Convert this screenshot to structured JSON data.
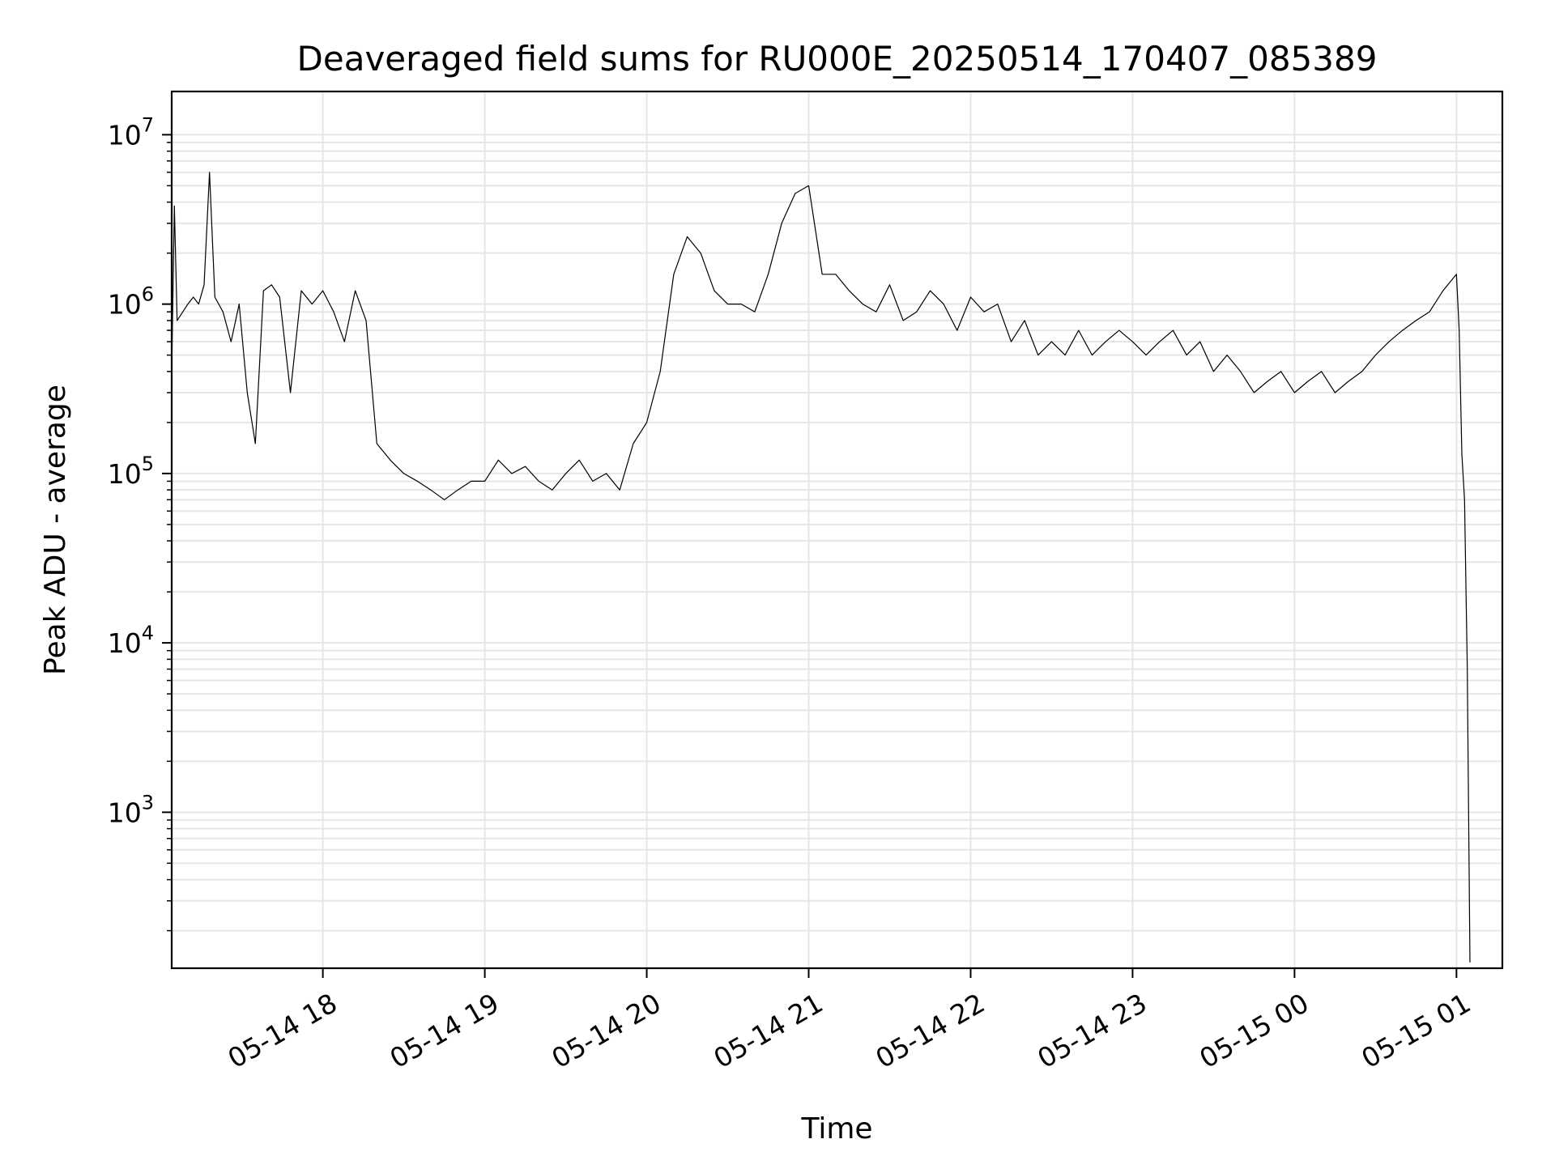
{
  "chart_data": {
    "type": "line",
    "title": "Deaveraged field sums for RU000E_20250514_170407_085389",
    "xlabel": "Time",
    "ylabel": "Peak ADU - average",
    "yscale": "log",
    "ylim": [
      120,
      18000000
    ],
    "xlim": [
      "2025-05-14 17:04",
      "2025-05-15 01:17"
    ],
    "x_ticks": [
      {
        "value": "2025-05-14 18:00",
        "label": "05-14 18"
      },
      {
        "value": "2025-05-14 19:00",
        "label": "05-14 19"
      },
      {
        "value": "2025-05-14 20:00",
        "label": "05-14 20"
      },
      {
        "value": "2025-05-14 21:00",
        "label": "05-14 21"
      },
      {
        "value": "2025-05-14 22:00",
        "label": "05-14 22"
      },
      {
        "value": "2025-05-14 23:00",
        "label": "05-14 23"
      },
      {
        "value": "2025-05-15 00:00",
        "label": "05-15 00"
      },
      {
        "value": "2025-05-15 01:00",
        "label": "05-15 01"
      }
    ],
    "y_ticks": [
      {
        "value": 1000,
        "label": "10",
        "exponent": "3"
      },
      {
        "value": 10000,
        "label": "10",
        "exponent": "4"
      },
      {
        "value": 100000,
        "label": "10",
        "exponent": "5"
      },
      {
        "value": 1000000,
        "label": "10",
        "exponent": "6"
      },
      {
        "value": 10000000,
        "label": "10",
        "exponent": "7"
      }
    ],
    "grid": true,
    "line_color": "#000000",
    "series": [
      {
        "x": [
          "2025-05-14 17:04",
          "2025-05-14 17:05",
          "2025-05-14 17:06",
          "2025-05-14 17:10",
          "2025-05-14 17:12",
          "2025-05-14 17:14",
          "2025-05-14 17:16",
          "2025-05-14 17:18",
          "2025-05-14 17:20",
          "2025-05-14 17:23",
          "2025-05-14 17:26",
          "2025-05-14 17:29",
          "2025-05-14 17:32",
          "2025-05-14 17:35",
          "2025-05-14 17:38",
          "2025-05-14 17:41",
          "2025-05-14 17:44",
          "2025-05-14 17:48",
          "2025-05-14 17:52",
          "2025-05-14 17:56",
          "2025-05-14 18:00",
          "2025-05-14 18:04",
          "2025-05-14 18:08",
          "2025-05-14 18:12",
          "2025-05-14 18:16",
          "2025-05-14 18:20",
          "2025-05-14 18:25",
          "2025-05-14 18:30",
          "2025-05-14 18:35",
          "2025-05-14 18:40",
          "2025-05-14 18:45",
          "2025-05-14 18:50",
          "2025-05-14 18:55",
          "2025-05-14 19:00",
          "2025-05-14 19:05",
          "2025-05-14 19:10",
          "2025-05-14 19:15",
          "2025-05-14 19:20",
          "2025-05-14 19:25",
          "2025-05-14 19:30",
          "2025-05-14 19:35",
          "2025-05-14 19:40",
          "2025-05-14 19:45",
          "2025-05-14 19:50",
          "2025-05-14 19:55",
          "2025-05-14 20:00",
          "2025-05-14 20:05",
          "2025-05-14 20:10",
          "2025-05-14 20:15",
          "2025-05-14 20:20",
          "2025-05-14 20:25",
          "2025-05-14 20:30",
          "2025-05-14 20:35",
          "2025-05-14 20:40",
          "2025-05-14 20:45",
          "2025-05-14 20:50",
          "2025-05-14 20:55",
          "2025-05-14 21:00",
          "2025-05-14 21:05",
          "2025-05-14 21:10",
          "2025-05-14 21:15",
          "2025-05-14 21:20",
          "2025-05-14 21:25",
          "2025-05-14 21:30",
          "2025-05-14 21:35",
          "2025-05-14 21:40",
          "2025-05-14 21:45",
          "2025-05-14 21:50",
          "2025-05-14 21:55",
          "2025-05-14 22:00",
          "2025-05-14 22:05",
          "2025-05-14 22:10",
          "2025-05-14 22:15",
          "2025-05-14 22:20",
          "2025-05-14 22:25",
          "2025-05-14 22:30",
          "2025-05-14 22:35",
          "2025-05-14 22:40",
          "2025-05-14 22:45",
          "2025-05-14 22:50",
          "2025-05-14 22:55",
          "2025-05-14 23:00",
          "2025-05-14 23:05",
          "2025-05-14 23:10",
          "2025-05-14 23:15",
          "2025-05-14 23:20",
          "2025-05-14 23:25",
          "2025-05-14 23:30",
          "2025-05-14 23:35",
          "2025-05-14 23:40",
          "2025-05-14 23:45",
          "2025-05-14 23:50",
          "2025-05-14 23:55",
          "2025-05-15 00:00",
          "2025-05-15 00:05",
          "2025-05-15 00:10",
          "2025-05-15 00:15",
          "2025-05-15 00:20",
          "2025-05-15 00:25",
          "2025-05-15 00:30",
          "2025-05-15 00:35",
          "2025-05-15 00:40",
          "2025-05-15 00:45",
          "2025-05-15 00:50",
          "2025-05-15 00:55",
          "2025-05-15 01:00",
          "2025-05-15 01:01",
          "2025-05-15 01:02",
          "2025-05-15 01:03",
          "2025-05-15 01:04",
          "2025-05-15 01:05"
        ],
        "y": [
          400000,
          3800000,
          800000,
          1000000,
          1100000,
          1000000,
          1300000,
          6000000,
          1100000,
          900000,
          600000,
          1000000,
          300000,
          150000,
          1200000,
          1300000,
          1100000,
          300000,
          1200000,
          1000000,
          1200000,
          900000,
          600000,
          1200000,
          800000,
          150000,
          120000,
          100000,
          90000,
          80000,
          70000,
          80000,
          90000,
          90000,
          120000,
          100000,
          110000,
          90000,
          80000,
          100000,
          120000,
          90000,
          100000,
          80000,
          150000,
          200000,
          400000,
          1500000,
          2500000,
          2000000,
          1200000,
          1000000,
          1000000,
          900000,
          1500000,
          3000000,
          4500000,
          5000000,
          1500000,
          1500000,
          1200000,
          1000000,
          900000,
          1300000,
          800000,
          900000,
          1200000,
          1000000,
          700000,
          1100000,
          900000,
          1000000,
          600000,
          800000,
          500000,
          600000,
          500000,
          700000,
          500000,
          600000,
          700000,
          600000,
          500000,
          600000,
          700000,
          500000,
          600000,
          400000,
          500000,
          400000,
          300000,
          350000,
          400000,
          300000,
          350000,
          400000,
          300000,
          350000,
          400000,
          500000,
          600000,
          700000,
          800000,
          900000,
          1200000,
          1500000,
          700000,
          130000,
          70000,
          7000,
          130
        ]
      }
    ]
  }
}
